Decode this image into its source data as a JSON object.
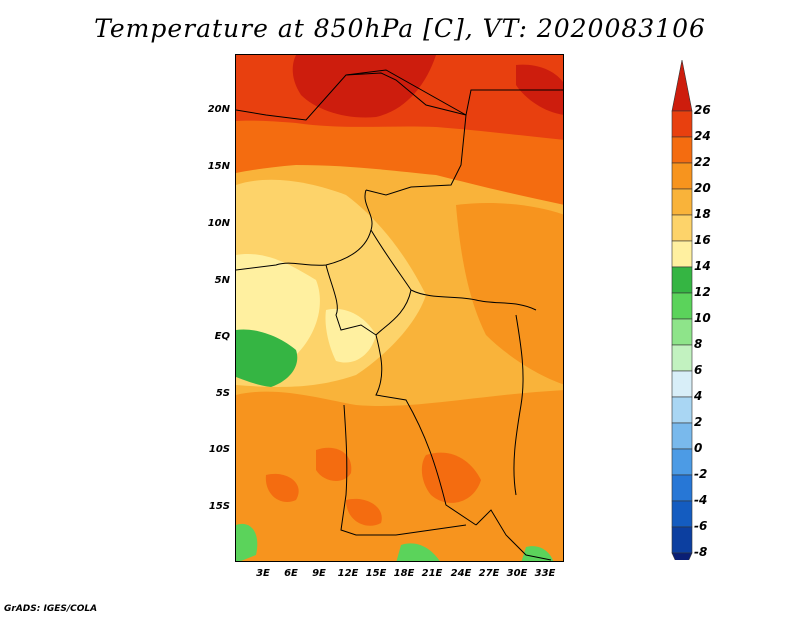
{
  "title": "Temperature at 850hPa [C], VT: 2020083106",
  "credit": "GrADS: IGES/COLA",
  "map": {
    "lat_labels": [
      "20N",
      "15N",
      "10N",
      "5N",
      "EQ",
      "5S",
      "10S",
      "15S"
    ],
    "lon_labels": [
      "3E",
      "6E",
      "9E",
      "12E",
      "15E",
      "18E",
      "21E",
      "24E",
      "27E",
      "30E",
      "33E"
    ]
  },
  "colorbar": {
    "labels": [
      "26",
      "24",
      "22",
      "20",
      "18",
      "16",
      "14",
      "12",
      "10",
      "8",
      "6",
      "4",
      "2",
      "0",
      "-2",
      "-4",
      "-6",
      "-8"
    ],
    "colors": [
      "#cd1d0d",
      "#e8400f",
      "#f46c10",
      "#f7941e",
      "#f9b33a",
      "#fdd36a",
      "#fff0a0",
      "#35b543",
      "#5bd35b",
      "#8ee48a",
      "#c2f2c0",
      "#d8eef8",
      "#a9d6f3",
      "#79b9ec",
      "#4c9be5",
      "#2777d6",
      "#145cc0",
      "#0c3fa0",
      "#0a1f75"
    ]
  }
}
